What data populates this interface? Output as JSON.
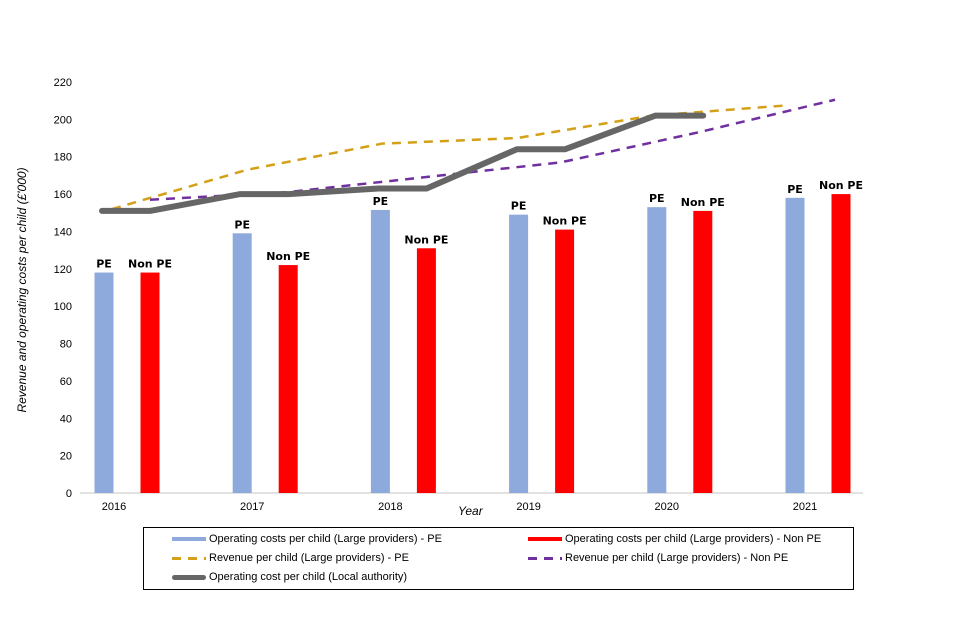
{
  "chart_data": {
    "type": "bar",
    "title": "",
    "xlabel": "Year",
    "ylabel": "Revenue and operating costs per child (£'000)",
    "ylim": [
      0,
      220
    ],
    "yticks": [
      0,
      20,
      40,
      60,
      80,
      100,
      120,
      140,
      160,
      180,
      200,
      220
    ],
    "grid": false,
    "legend_position": "bottom",
    "categories": [
      "2016",
      "2017",
      "2018",
      "2019",
      "2020",
      "2021"
    ],
    "series": [
      {
        "name": "Operating costs per child (Large providers) - PE",
        "type": "bar",
        "color": "#8EA9DB",
        "data_label": "PE",
        "values": [
          118,
          139,
          151.5,
          149,
          153,
          158
        ]
      },
      {
        "name": "Operating costs per child (Large providers) - Non PE",
        "type": "bar",
        "color": "#FF0000",
        "data_label": "Non PE",
        "values": [
          118,
          122,
          131,
          141,
          151,
          160
        ]
      },
      {
        "name": "Revenue per child (Large providers) - PE",
        "type": "line",
        "style": "dashed",
        "color": "#D4A017",
        "values": [
          152,
          173,
          187,
          190,
          202,
          207.5
        ]
      },
      {
        "name": "Revenue per child (Large providers) - Non PE",
        "type": "line",
        "style": "dashed",
        "color": "#7030A0",
        "values": [
          157,
          161,
          169,
          177,
          193,
          210.5
        ]
      },
      {
        "name": "Operating cost per child (Local authority)",
        "type": "line",
        "style": "solid",
        "color": "#666666",
        "values": [
          151,
          160,
          163,
          184,
          202
        ]
      }
    ]
  },
  "legend": {
    "items": [
      {
        "label": "Operating costs per child (Large providers) - PE",
        "icon": "bar-swatch"
      },
      {
        "label": "Operating costs per child (Large providers) - Non PE",
        "icon": "bar-swatch"
      },
      {
        "label": "Revenue per child (Large providers) - PE",
        "icon": "dashed-line"
      },
      {
        "label": "Revenue per child (Large providers) - Non PE",
        "icon": "dashed-line"
      },
      {
        "label": "Operating cost per child (Local authority)",
        "icon": "solid-line"
      }
    ]
  }
}
